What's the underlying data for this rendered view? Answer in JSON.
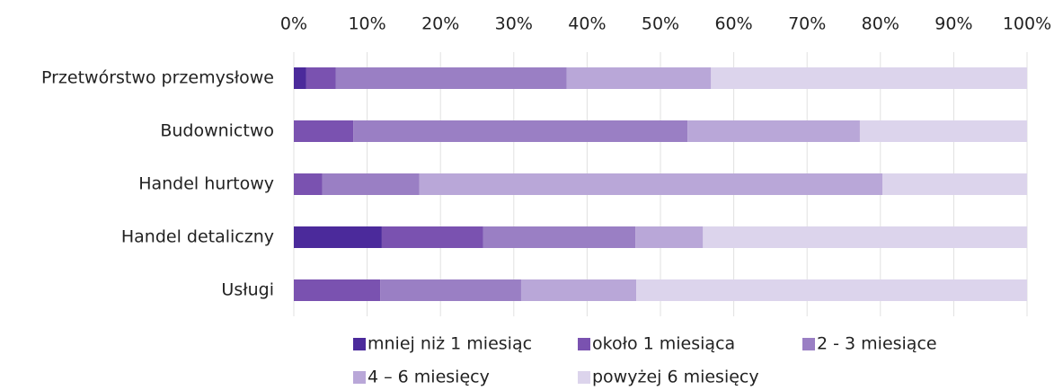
{
  "chart_data": {
    "type": "stacked-bar-horizontal",
    "categories": [
      "Przetwórstwo przemysłowe",
      "Budownictwo",
      "Handel hurtowy",
      "Handel detaliczny",
      "Usługi"
    ],
    "series": [
      {
        "name": "mniej niż 1 miesiąc",
        "color": "#4b2a9b",
        "values": [
          1.7,
          0,
          0,
          12.0,
          0
        ]
      },
      {
        "name": "około 1 miesiąca",
        "color": "#7a52b0",
        "values": [
          4.0,
          8.1,
          3.9,
          13.8,
          11.8
        ]
      },
      {
        "name": "2 - 3 miesiące",
        "color": "#9a7fc4",
        "values": [
          31.5,
          45.6,
          13.2,
          20.8,
          19.2
        ]
      },
      {
        "name": "4 – 6 miesięcy",
        "color": "#b9a7d8",
        "values": [
          19.7,
          23.5,
          63.2,
          9.2,
          15.7
        ]
      },
      {
        "name": "powyżej 6 miesięcy",
        "color": "#dcd4ec",
        "values": [
          43.1,
          22.8,
          19.7,
          44.2,
          53.3
        ]
      }
    ],
    "xlim": [
      0,
      100
    ],
    "xticks": [
      {
        "value": 0,
        "label": "0%"
      },
      {
        "value": 10,
        "label": "10%"
      },
      {
        "value": 20,
        "label": "20%"
      },
      {
        "value": 30,
        "label": "30%"
      },
      {
        "value": 40,
        "label": "40%"
      },
      {
        "value": 50,
        "label": "50%"
      },
      {
        "value": 60,
        "label": "60%"
      },
      {
        "value": 70,
        "label": "70%"
      },
      {
        "value": 80,
        "label": "80%"
      },
      {
        "value": 90,
        "label": "90%"
      },
      {
        "value": 100,
        "label": "100%"
      }
    ],
    "grid": true,
    "legend": "bottom"
  }
}
